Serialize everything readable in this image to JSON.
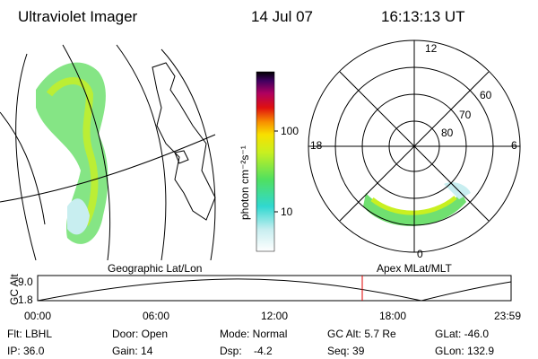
{
  "header": {
    "instrument": "Ultraviolet Imager",
    "date": "14 Jul 07",
    "time": "16:13:13 UT"
  },
  "colorbar": {
    "label": "photon cm⁻²s⁻¹",
    "ticks": [
      "100",
      "10"
    ]
  },
  "map": {
    "label": "Geographic Lat/Lon"
  },
  "polar": {
    "label": "Apex MLat/MLT",
    "mlt": [
      "12",
      "18",
      "6",
      "0"
    ],
    "mlat": [
      "60",
      "70",
      "80"
    ]
  },
  "altitude": {
    "label": "GC Alt",
    "ticks": [
      "9.0",
      "1.8"
    ],
    "times": [
      "00:00",
      "06:00",
      "12:00",
      "18:00",
      "23:59"
    ]
  },
  "footer": {
    "rows": [
      [
        "Flt: LBHL",
        "Door: Open",
        "Mode: Normal",
        "GC Alt: 5.7 Re",
        "GLat: -46.0"
      ],
      [
        "IP: 36.0",
        "Gain: 14",
        "Dsp:    -4.2",
        "Seq: 39",
        "GLon: 132.9"
      ]
    ]
  }
}
